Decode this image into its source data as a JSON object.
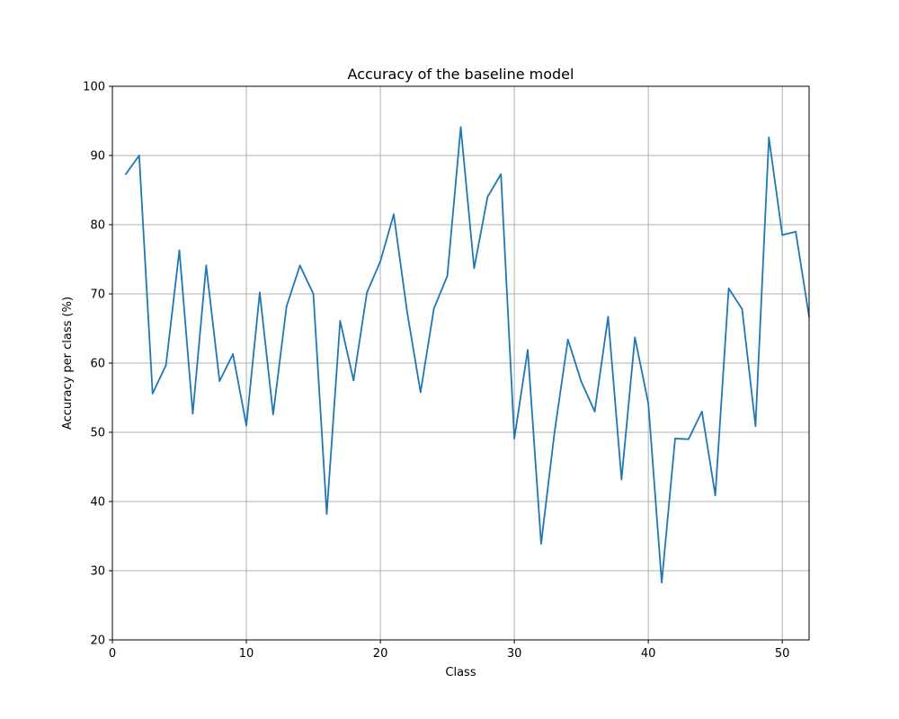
{
  "chart_data": {
    "type": "line",
    "title": "Accuracy of the baseline model",
    "xlabel": "Class",
    "ylabel": "Accuracy per class (%)",
    "xlim": [
      0,
      52
    ],
    "ylim": [
      20,
      100
    ],
    "xticks": [
      0,
      10,
      20,
      30,
      40,
      50
    ],
    "yticks": [
      20,
      30,
      40,
      50,
      60,
      70,
      80,
      90,
      100
    ],
    "grid": true,
    "line_color": "#1f77b4",
    "x": [
      1,
      2,
      3,
      4,
      5,
      6,
      7,
      8,
      9,
      10,
      11,
      12,
      13,
      14,
      15,
      16,
      17,
      18,
      19,
      20,
      21,
      22,
      23,
      24,
      25,
      26,
      27,
      28,
      29,
      30,
      31,
      32,
      33,
      34,
      35,
      36,
      37,
      38,
      39,
      40,
      41,
      42,
      43,
      44,
      45,
      46,
      47,
      48,
      49,
      50,
      51,
      52
    ],
    "y": [
      87.3,
      90.0,
      55.6,
      59.7,
      76.3,
      52.7,
      74.1,
      57.4,
      61.3,
      51.0,
      70.2,
      52.6,
      68.2,
      74.1,
      70.0,
      38.2,
      66.1,
      57.5,
      70.2,
      74.7,
      81.5,
      67.4,
      55.8,
      67.9,
      72.6,
      94.1,
      73.7,
      84.0,
      87.3,
      49.1,
      61.9,
      33.9,
      50.0,
      63.4,
      57.3,
      53.0,
      66.7,
      43.2,
      63.7,
      54.2,
      28.3,
      49.1,
      49.0,
      53.0,
      40.9,
      70.8,
      67.8,
      50.9,
      92.6,
      78.5,
      79.0,
      66.7
    ]
  }
}
